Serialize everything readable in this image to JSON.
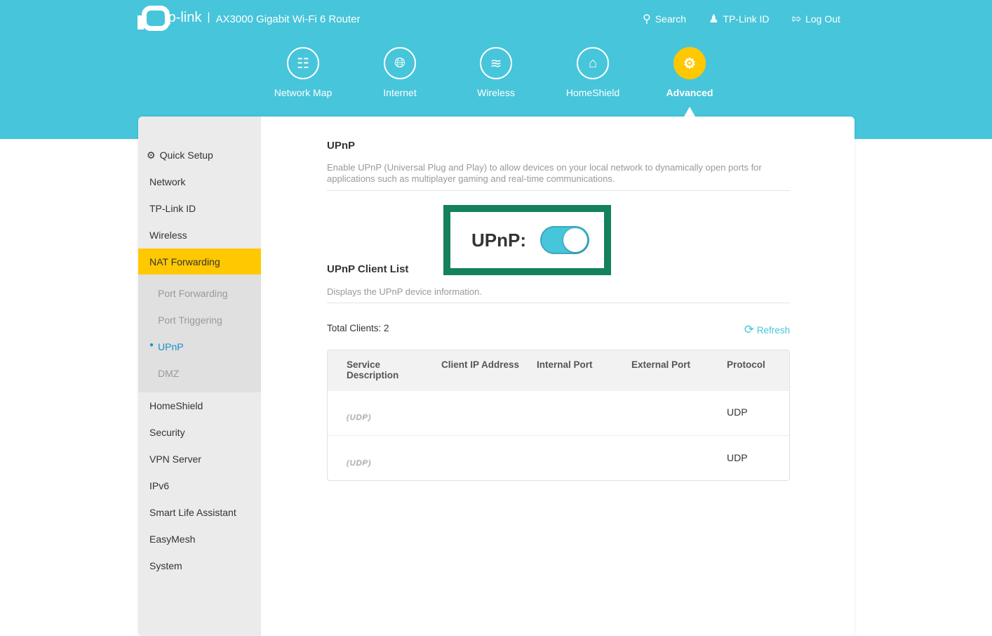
{
  "header": {
    "brand": "tp-link",
    "model": "AX3000 Gigabit Wi-Fi 6 Router",
    "links": [
      {
        "label": "Search",
        "icon": "search-icon"
      },
      {
        "label": "TP-Link ID",
        "icon": "user-icon"
      },
      {
        "label": "Log Out",
        "icon": "logout-icon"
      }
    ]
  },
  "nav": [
    {
      "label": "Network Map",
      "icon": "network-map-icon"
    },
    {
      "label": "Internet",
      "icon": "globe-icon"
    },
    {
      "label": "Wireless",
      "icon": "wifi-icon"
    },
    {
      "label": "HomeShield",
      "icon": "home-shield-icon"
    },
    {
      "label": "Advanced",
      "icon": "gear-icon",
      "active": true
    }
  ],
  "sidebar": {
    "items": [
      "Quick Setup",
      "Network",
      "TP-Link ID",
      "Wireless",
      "NAT Forwarding",
      "HomeShield",
      "Security",
      "VPN Server",
      "IPv6",
      "Smart Life Assistant",
      "EasyMesh",
      "System"
    ],
    "subitems": [
      "Port Forwarding",
      "Port Triggering",
      "UPnP",
      "DMZ"
    ],
    "active": "NAT Forwarding",
    "active_sub": "UPnP"
  },
  "upnp": {
    "title": "UPnP",
    "description": "Enable UPnP (Universal Plug and Play) to allow devices on your local network to dynamically open ports for applications such as multiplayer gaming and real-time communications.",
    "toggle_label": "UPnP:",
    "enabled": true
  },
  "clients": {
    "title": "UPnP Client List",
    "description": "Displays the UPnP device information.",
    "total": "Total Clients: 2",
    "refresh": "Refresh",
    "columns": [
      "Service Description",
      "Client IP Address",
      "Internal Port",
      "External Port",
      "Protocol"
    ],
    "rows": [
      {
        "service": "(UDP)",
        "protocol": "UDP"
      },
      {
        "service": "(UDP)",
        "protocol": "UDP"
      }
    ]
  },
  "colors": {
    "accent": "#47c5da",
    "active": "#ffc800",
    "highlight": "#14805e"
  }
}
